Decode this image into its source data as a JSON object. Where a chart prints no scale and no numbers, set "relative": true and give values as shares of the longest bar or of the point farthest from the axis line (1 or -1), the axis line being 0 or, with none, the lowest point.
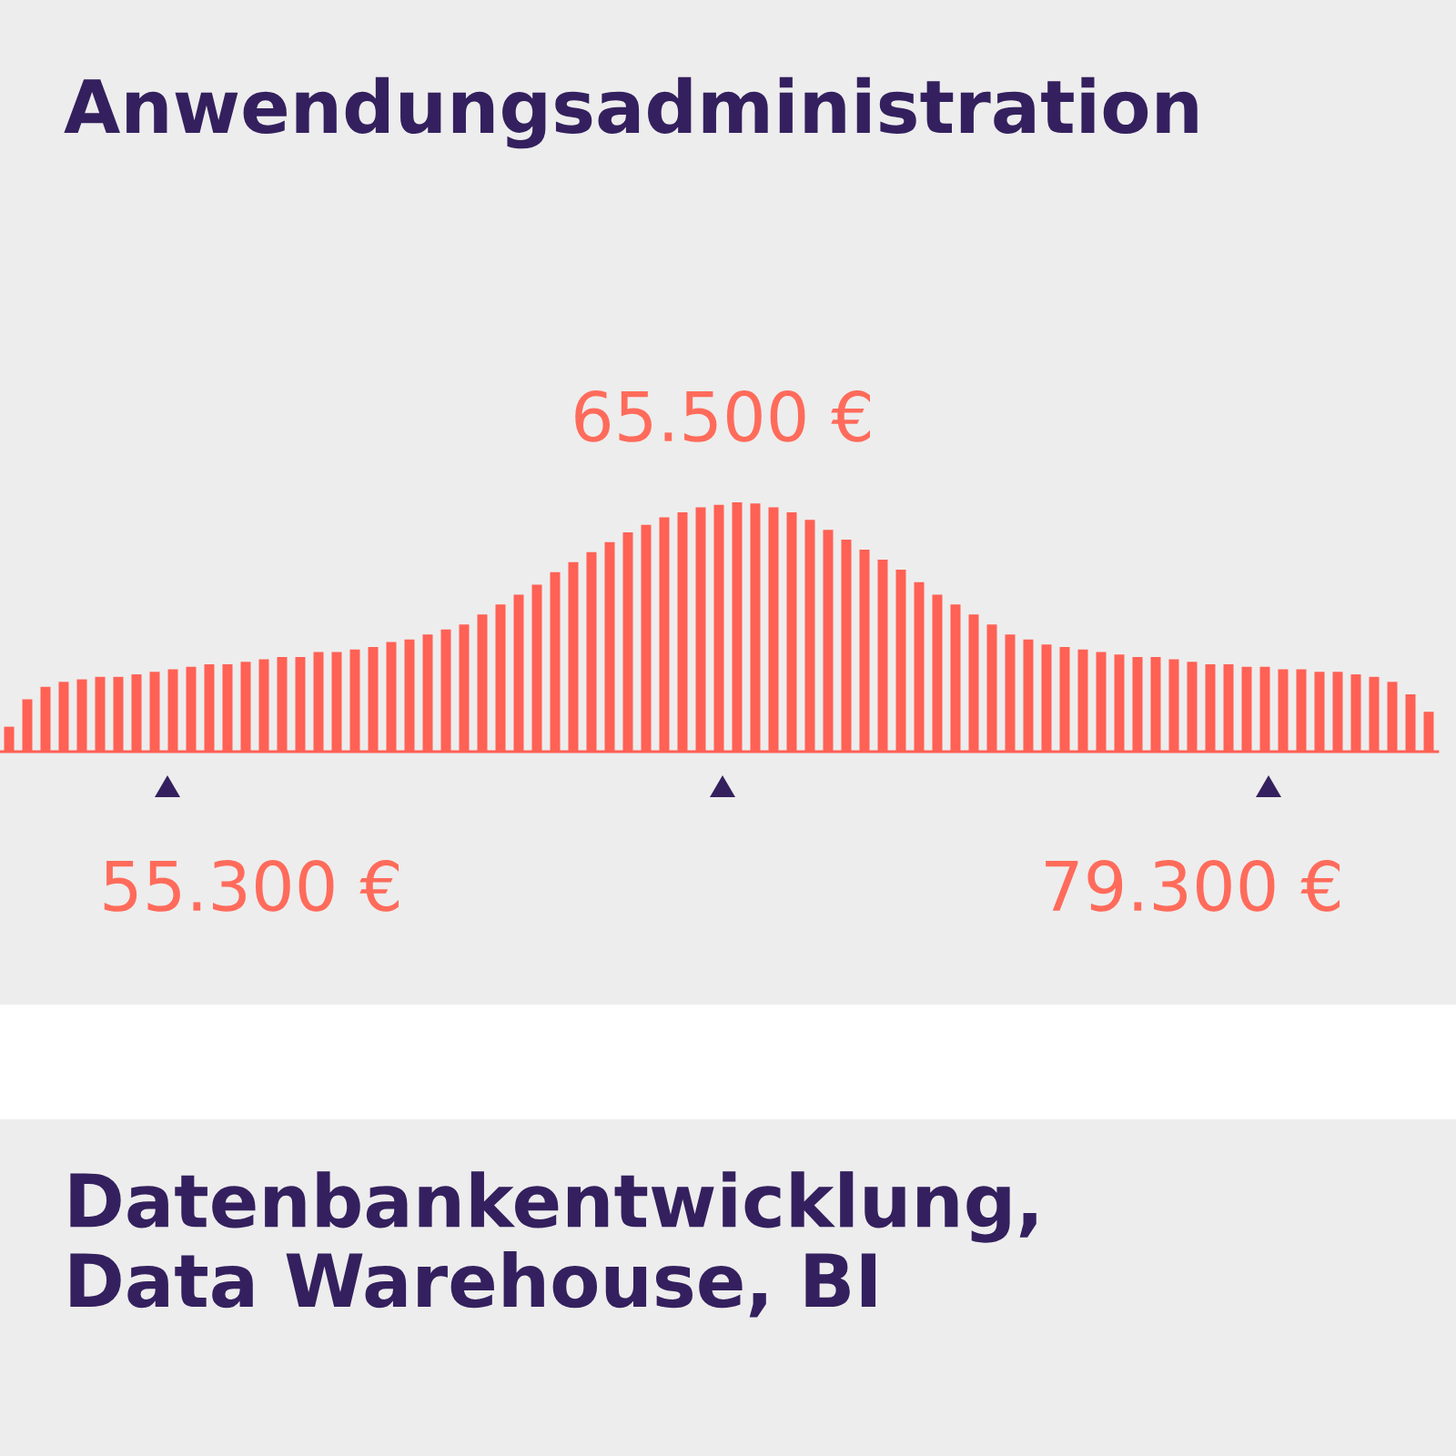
{
  "chart_data": [
    {
      "type": "bar",
      "title": "Anwendungsadministration",
      "relative": true,
      "color": "#ff6155",
      "categories": [
        null,
        null,
        null,
        null,
        null,
        null,
        null,
        null,
        null,
        null,
        null,
        null,
        null,
        null,
        null,
        null,
        null,
        null,
        null,
        null,
        null,
        null,
        null,
        null,
        null,
        null,
        null,
        null,
        null,
        null,
        null,
        null,
        null,
        null,
        null,
        null,
        null,
        null,
        null,
        null,
        null,
        null,
        null,
        null,
        null,
        null,
        null,
        null,
        null,
        null,
        null,
        null,
        null,
        null,
        null,
        null,
        null,
        null,
        null,
        null,
        null,
        null,
        null,
        null,
        null,
        null,
        null,
        null,
        null,
        null,
        null,
        null,
        null,
        null,
        null,
        null,
        null,
        null,
        null
      ],
      "values": [
        0.1,
        0.21,
        0.26,
        0.28,
        0.29,
        0.3,
        0.3,
        0.31,
        0.32,
        0.33,
        0.34,
        0.35,
        0.35,
        0.36,
        0.37,
        0.38,
        0.38,
        0.4,
        0.4,
        0.41,
        0.42,
        0.44,
        0.45,
        0.47,
        0.49,
        0.51,
        0.55,
        0.59,
        0.63,
        0.67,
        0.72,
        0.76,
        0.8,
        0.84,
        0.88,
        0.91,
        0.94,
        0.96,
        0.98,
        0.99,
        1.0,
        0.995,
        0.98,
        0.96,
        0.93,
        0.89,
        0.85,
        0.81,
        0.77,
        0.73,
        0.68,
        0.63,
        0.59,
        0.55,
        0.51,
        0.47,
        0.45,
        0.43,
        0.42,
        0.41,
        0.4,
        0.39,
        0.38,
        0.38,
        0.37,
        0.36,
        0.35,
        0.35,
        0.34,
        0.34,
        0.33,
        0.33,
        0.32,
        0.32,
        0.31,
        0.3,
        0.28,
        0.23,
        0.16
      ],
      "annotations": [
        "55.300 €",
        "65.500 €",
        "79.300 €"
      ]
    },
    {
      "type": "other",
      "title": "Datenbankentwicklung,\nData Warehouse, BI"
    }
  ]
}
